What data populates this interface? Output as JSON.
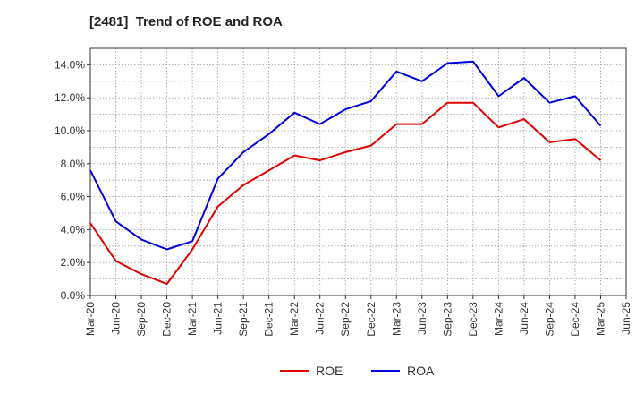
{
  "chart_data": {
    "type": "line",
    "title": "[2481]  Trend of ROE and ROA",
    "xlabel": "",
    "ylabel": "",
    "x": [
      "Mar-20",
      "Jun-20",
      "Sep-20",
      "Dec-20",
      "Mar-21",
      "Jun-21",
      "Sep-21",
      "Dec-21",
      "Mar-22",
      "Jun-22",
      "Sep-22",
      "Dec-22",
      "Mar-23",
      "Jun-23",
      "Sep-23",
      "Dec-23",
      "Mar-24",
      "Jun-24",
      "Sep-24",
      "Dec-24",
      "Mar-25",
      "Jun-25"
    ],
    "y_ticks": [
      "0.0%",
      "2.0%",
      "4.0%",
      "6.0%",
      "8.0%",
      "10.0%",
      "12.0%",
      "14.0%"
    ],
    "ylim": [
      0,
      15
    ],
    "grid": true,
    "legend_position": "bottom",
    "series": [
      {
        "name": "ROE",
        "color": "#e00000",
        "values": [
          4.4,
          2.1,
          1.3,
          0.7,
          2.8,
          5.4,
          6.7,
          7.6,
          8.5,
          8.2,
          8.7,
          9.1,
          10.4,
          10.4,
          11.7,
          11.7,
          10.2,
          10.7,
          9.3,
          9.5,
          8.2,
          null
        ]
      },
      {
        "name": "ROA",
        "color": "#0000dd",
        "values": [
          7.6,
          4.5,
          3.4,
          2.8,
          3.3,
          7.1,
          8.7,
          9.8,
          11.1,
          10.4,
          11.3,
          11.8,
          13.6,
          13.0,
          14.1,
          14.2,
          12.1,
          13.2,
          11.7,
          12.1,
          10.3,
          null
        ]
      }
    ]
  }
}
